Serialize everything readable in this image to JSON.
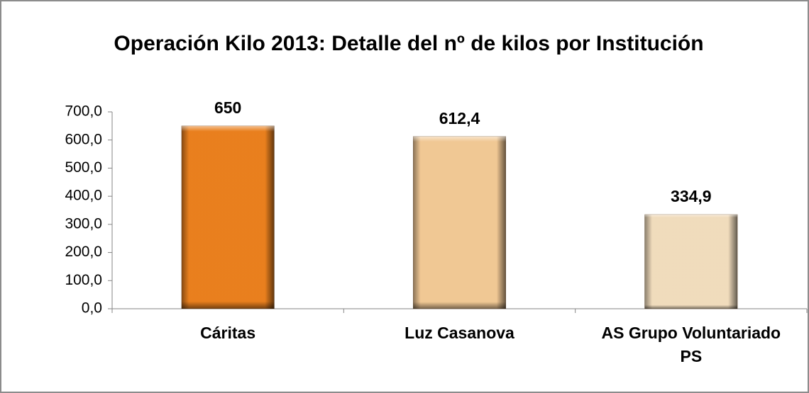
{
  "chart_data": {
    "type": "bar",
    "title": "Operación Kilo 2013: Detalle del nº de kilos por Institución",
    "categories": [
      "Cáritas",
      "Luz Casanova",
      "AS Grupo Voluntariado PS"
    ],
    "values": [
      650,
      612.4,
      334.9
    ],
    "value_labels": [
      "650",
      "612,4",
      "334,9"
    ],
    "colors": [
      "#f5861f",
      "#fdd29c",
      "#fde7c6"
    ],
    "ylim": [
      0,
      700
    ],
    "yticks": [
      {
        "value": 0,
        "label": "0,0"
      },
      {
        "value": 100,
        "label": "100,0"
      },
      {
        "value": 200,
        "label": "200,0"
      },
      {
        "value": 300,
        "label": "300,0"
      },
      {
        "value": 400,
        "label": "400,0"
      },
      {
        "value": 500,
        "label": "500,0"
      },
      {
        "value": 600,
        "label": "600,0"
      },
      {
        "value": 700,
        "label": "700,0"
      }
    ],
    "grid": false
  }
}
